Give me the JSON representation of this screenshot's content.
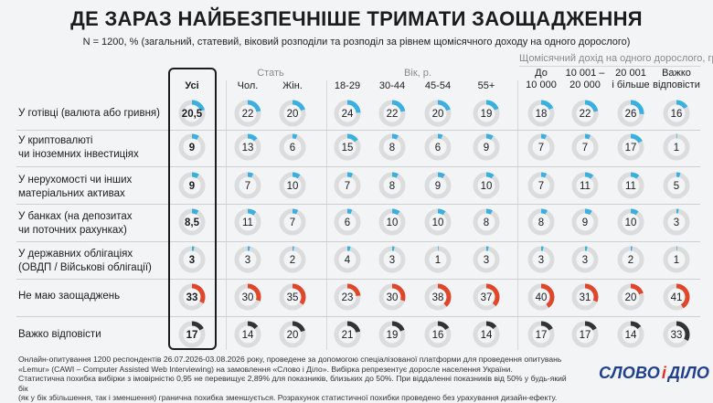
{
  "title": "ДЕ ЗАРАЗ НАЙБЕЗПЕЧНІШЕ ТРИМАТИ ЗАОЩАДЖЕННЯ",
  "subtitle": "N = 1200, % (загальний, статевий, віковий розподіли та розподіл за рівнем щомісячного доходу на одного дорослого)",
  "groups": [
    {
      "label": "Стать"
    },
    {
      "label": "Вік, р."
    },
    {
      "label": "Щомісячний дохід на одного дорослого, грн"
    }
  ],
  "columns": [
    {
      "label": "Усі"
    },
    {
      "label": "Чол."
    },
    {
      "label": "Жін."
    },
    {
      "label": "18-29"
    },
    {
      "label": "30-44"
    },
    {
      "label": "45-54"
    },
    {
      "label": "55+"
    },
    {
      "label": "До\n10 000"
    },
    {
      "label": "10 001 –\n20 000"
    },
    {
      "label": "20 001\nі більше"
    },
    {
      "label": "Важко\nвідповісти"
    }
  ],
  "rows": [
    {
      "label": "У готівці (валюта або гривня)"
    },
    {
      "label": "У криптовалюті\nчи іноземних інвестиціях"
    },
    {
      "label": "У нерухомості чи інших\nматеріальних активах"
    },
    {
      "label": "У банках (на депозитах\nчи поточних рахунках)"
    },
    {
      "label": "У державних облігаціях\n(ОВДП / Військові облігації)"
    },
    {
      "label": "Не маю заощаджень"
    },
    {
      "label": "Важко відповісти"
    }
  ],
  "chart_data": {
    "type": "table",
    "chart_kind": "donut-matrix",
    "title": "ДЕ ЗАРАЗ НАЙБЕЗПЕЧНІШЕ ТРИМАТИ ЗАОЩАДЖЕННЯ",
    "unit": "%",
    "columns": [
      "Усі",
      "Чол.",
      "Жін.",
      "18-29",
      "30-44",
      "45-54",
      "55+",
      "До 10 000",
      "10 001 – 20 000",
      "20 001 і більше",
      "Важко відповісти"
    ],
    "rows": [
      {
        "label": "У готівці (валюта або гривня)",
        "values": [
          "20,5",
          "22",
          "20",
          "24",
          "22",
          "20",
          "19",
          "18",
          "22",
          "26",
          "16"
        ],
        "fractions": [
          20.5,
          22,
          20,
          24,
          22,
          20,
          19,
          18,
          22,
          26,
          16
        ],
        "color": "#3bb0e0"
      },
      {
        "label": "У криптовалюті чи іноземних інвестиціях",
        "values": [
          "9",
          "13",
          "6",
          "15",
          "8",
          "6",
          "9",
          "7",
          "7",
          "17",
          "1"
        ],
        "fractions": [
          9,
          13,
          6,
          15,
          8,
          6,
          9,
          7,
          7,
          17,
          1
        ],
        "color": "#3bb0e0"
      },
      {
        "label": "У нерухомості чи інших матеріальних активах",
        "values": [
          "9",
          "7",
          "10",
          "7",
          "8",
          "9",
          "10",
          "7",
          "11",
          "11",
          "5"
        ],
        "fractions": [
          9,
          7,
          10,
          7,
          8,
          9,
          10,
          7,
          11,
          11,
          5
        ],
        "color": "#3bb0e0"
      },
      {
        "label": "У банках (на депозитах чи поточних рахунках)",
        "values": [
          "8,5",
          "11",
          "7",
          "6",
          "10",
          "10",
          "8",
          "8",
          "9",
          "10",
          "3"
        ],
        "fractions": [
          8.5,
          11,
          7,
          6,
          10,
          10,
          8,
          8,
          9,
          10,
          3
        ],
        "color": "#3bb0e0"
      },
      {
        "label": "У державних облігаціях (ОВДП / Військові облігації)",
        "values": [
          "3",
          "3",
          "2",
          "4",
          "3",
          "1",
          "3",
          "3",
          "3",
          "2",
          "1"
        ],
        "fractions": [
          3,
          3,
          2,
          4,
          3,
          1,
          3,
          3,
          3,
          2,
          1
        ],
        "color": "#3bb0e0"
      },
      {
        "label": "Не маю заощаджень",
        "values": [
          "33",
          "30",
          "35",
          "23",
          "30",
          "38",
          "37",
          "40",
          "31",
          "20",
          "41"
        ],
        "fractions": [
          33,
          30,
          35,
          23,
          30,
          38,
          37,
          40,
          31,
          20,
          41
        ],
        "color": "#e0472a"
      },
      {
        "label": "Важко відповісти",
        "values": [
          "17",
          "14",
          "20",
          "21",
          "19",
          "16",
          "14",
          "17",
          "17",
          "14",
          "33"
        ],
        "fractions": [
          17,
          14,
          20,
          21,
          19,
          16,
          14,
          17,
          17,
          14,
          33
        ],
        "color": "#333333"
      }
    ],
    "track_color": "#dcdcdc"
  },
  "footer": {
    "line1": "Онлайн-опитування 1200 респондентів 26.07.2026-03.08.2026 року, проведене за допомогою спеціалізованої платформи для проведення опитувань",
    "line2": "«Lemur» (CAWI – Computer Assisted Web Interviewing) на замовлення «Слово і Діло». Вибірка репрезентує доросле населення України.",
    "line3": "Статистична похибка вибірки з імовірністю 0,95 не перевищує 2,89% для показників, близьких до 50%. При віддаленні показників від 50% у будь-який бік",
    "line4": "(як у бік збільшення, так і зменшення) гранична похибка зменшується. Розрахунок статистичної похибки проведено без урахування дизайн-ефекту."
  },
  "logo": {
    "word1": "СЛОВО",
    "amp": "і",
    "word2": "ДІЛО"
  }
}
